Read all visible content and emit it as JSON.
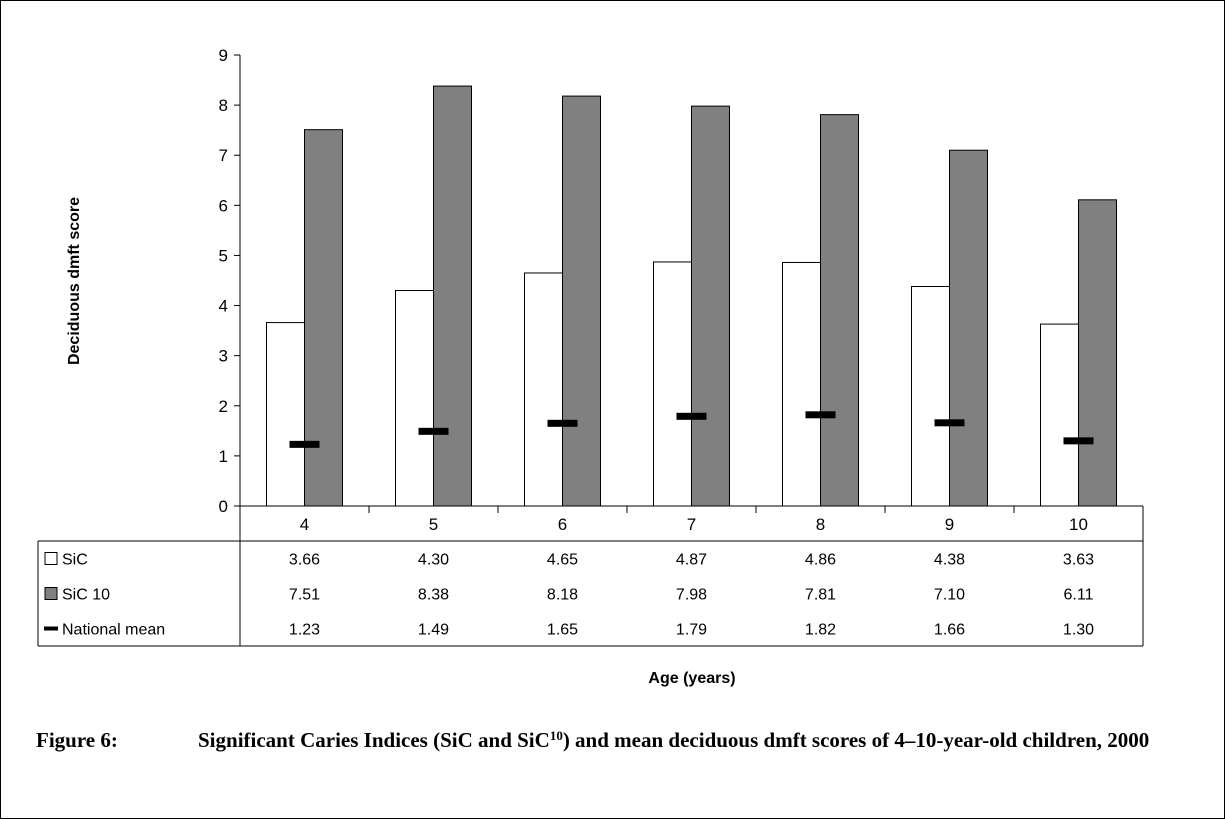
{
  "chart_data": {
    "type": "bar",
    "categories": [
      "4",
      "5",
      "6",
      "7",
      "8",
      "9",
      "10"
    ],
    "series": [
      {
        "name": "SiC",
        "values": [
          3.66,
          4.3,
          4.65,
          4.87,
          4.86,
          4.38,
          3.63
        ],
        "labels": [
          "3.66",
          "4.30",
          "4.65",
          "4.87",
          "4.86",
          "4.38",
          "3.63"
        ],
        "color": "#ffffff",
        "mark": "bar"
      },
      {
        "name": "SiC 10",
        "values": [
          7.51,
          8.38,
          8.18,
          7.98,
          7.81,
          7.1,
          6.11
        ],
        "labels": [
          "7.51",
          "8.38",
          "8.18",
          "7.98",
          "7.81",
          "7.10",
          "6.11"
        ],
        "color": "#808080",
        "mark": "bar"
      },
      {
        "name": "National mean",
        "values": [
          1.23,
          1.49,
          1.65,
          1.79,
          1.82,
          1.66,
          1.3
        ],
        "labels": [
          "1.23",
          "1.49",
          "1.65",
          "1.79",
          "1.82",
          "1.66",
          "1.30"
        ],
        "color": "#000000",
        "mark": "dash"
      }
    ],
    "ylabel": "Deciduous dmft score",
    "xlabel": "Age (years)",
    "ylim": [
      0,
      9
    ],
    "yticks": [
      "0",
      "1",
      "2",
      "3",
      "4",
      "5",
      "6",
      "7",
      "8",
      "9"
    ],
    "grid": false,
    "legend": "data-table-left"
  },
  "caption": {
    "number": "Figure 6:",
    "text_before": "Significant Caries Indices (SiC and SiC",
    "superscript": "10",
    "text_after": ") and mean deciduous dmft scores of 4–10-year-old children, 2000"
  }
}
